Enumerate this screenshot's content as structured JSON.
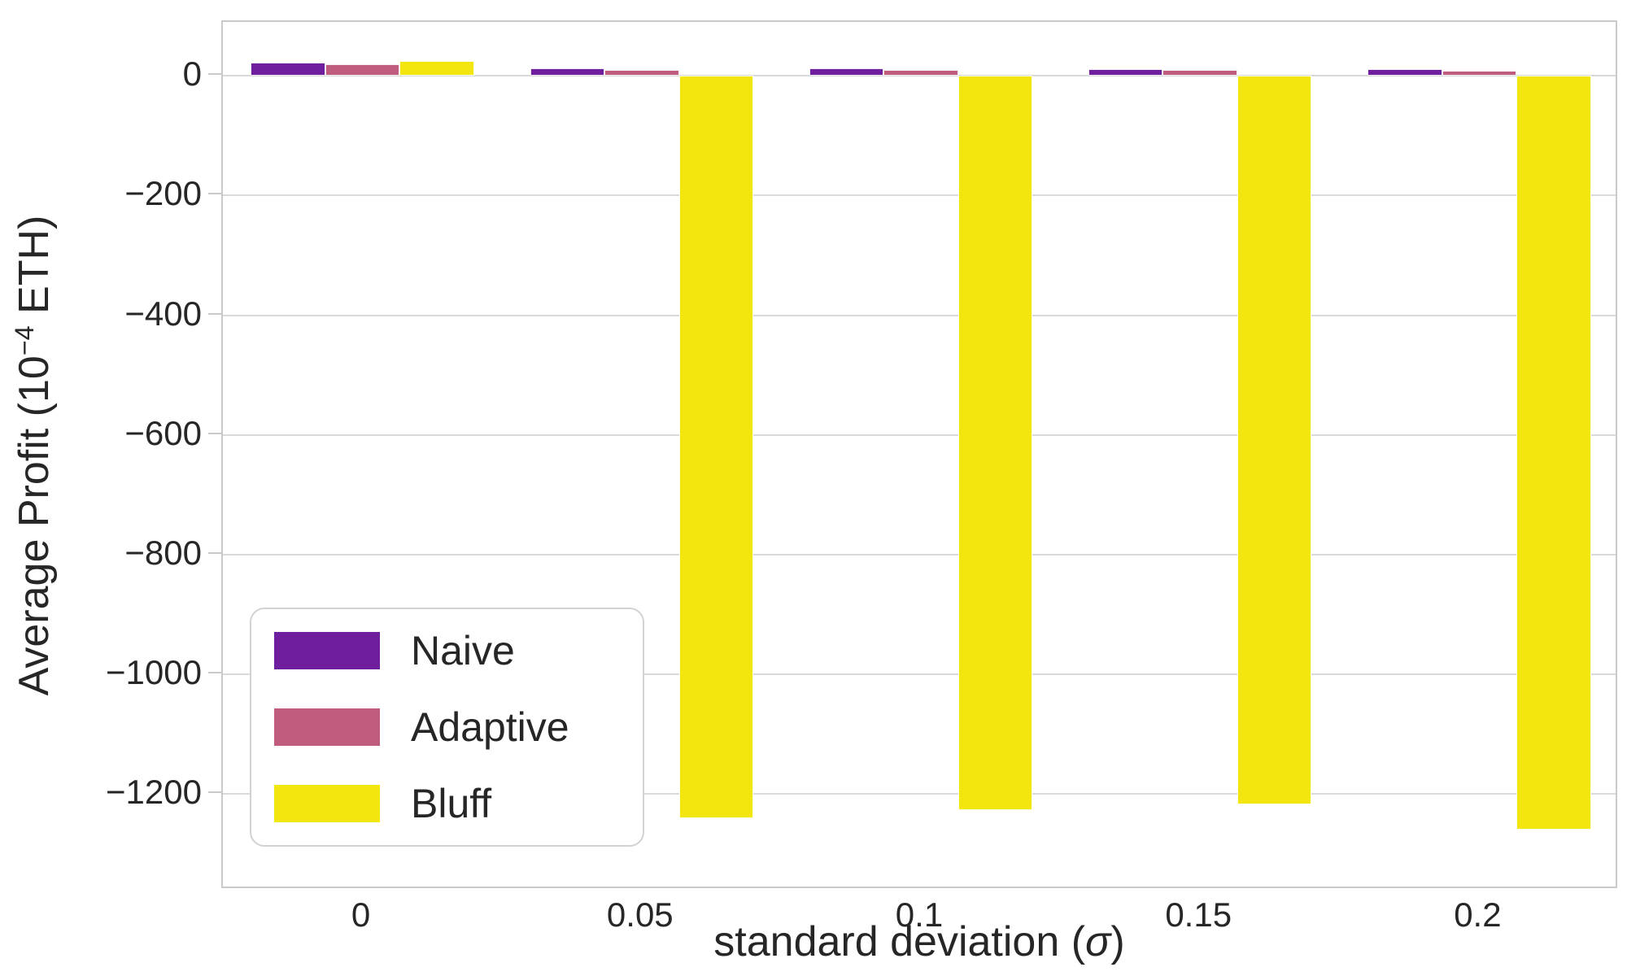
{
  "chart_data": {
    "type": "bar",
    "title": "",
    "xlabel": {
      "prefix": "standard deviation (",
      "sigma": "σ",
      "suffix": ")"
    },
    "ylabel": {
      "prefix": "Average Profit (10",
      "superscript": "−4",
      "suffix": " ETH)"
    },
    "categories": [
      "0",
      "0.05",
      "0.1",
      "0.15",
      "0.2"
    ],
    "series": [
      {
        "name": "Naive",
        "color": "#6f1f9e",
        "values": [
          22,
          12,
          12,
          11,
          11
        ]
      },
      {
        "name": "Adaptive",
        "color": "#c05c7e",
        "values": [
          19,
          10,
          10,
          10,
          9
        ]
      },
      {
        "name": "Bluff",
        "color": "#f3e50e",
        "values": [
          25,
          -1240,
          -1227,
          -1218,
          -1260
        ]
      }
    ],
    "y_ticks": [
      0,
      -200,
      -400,
      -600,
      -800,
      -1000,
      -1200
    ],
    "y_tick_labels": [
      "0",
      "−200",
      "−400",
      "−600",
      "−800",
      "−1000",
      "−1200"
    ],
    "ylim": [
      -1360,
      90
    ],
    "grid": "horizontal",
    "legend_position": "lower left",
    "bar_group_fill": 0.8,
    "colors": {
      "grid": "#dadada",
      "spine": "#c9c9c9",
      "text": "#262626",
      "background": "#ffffff"
    }
  }
}
